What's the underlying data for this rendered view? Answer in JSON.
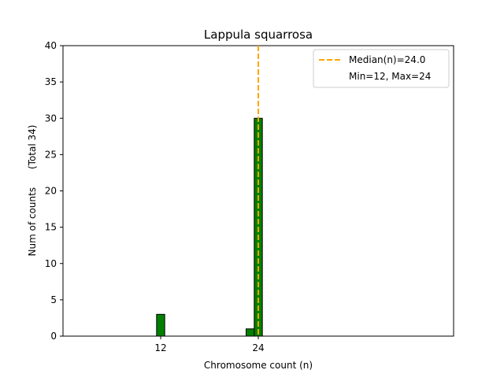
{
  "chart_data": {
    "type": "bar",
    "title": "Lappula squarrosa",
    "xlabel": "Chromosome count (n)",
    "ylabel": "Num of counts      (Total 34)",
    "xlim": [
      0,
      48
    ],
    "ylim": [
      0,
      40
    ],
    "xticks": [
      12,
      24
    ],
    "yticks": [
      0,
      5,
      10,
      15,
      20,
      25,
      30,
      35,
      40
    ],
    "bar_width": 1,
    "bars": [
      {
        "x": 12,
        "value": 3
      },
      {
        "x": 23,
        "value": 1
      },
      {
        "x": 24,
        "value": 30
      }
    ],
    "median_line": {
      "x": 24.0,
      "label": "Median(n)=24.0",
      "color": "#ffa500"
    },
    "legend": {
      "position": "top-right",
      "entries": [
        "Median(n)=24.0",
        "Min=12, Max=24"
      ]
    },
    "colors": {
      "bar_fill": "#008000",
      "bar_edge": "#000000",
      "median": "#ffa500"
    },
    "grid": false
  }
}
